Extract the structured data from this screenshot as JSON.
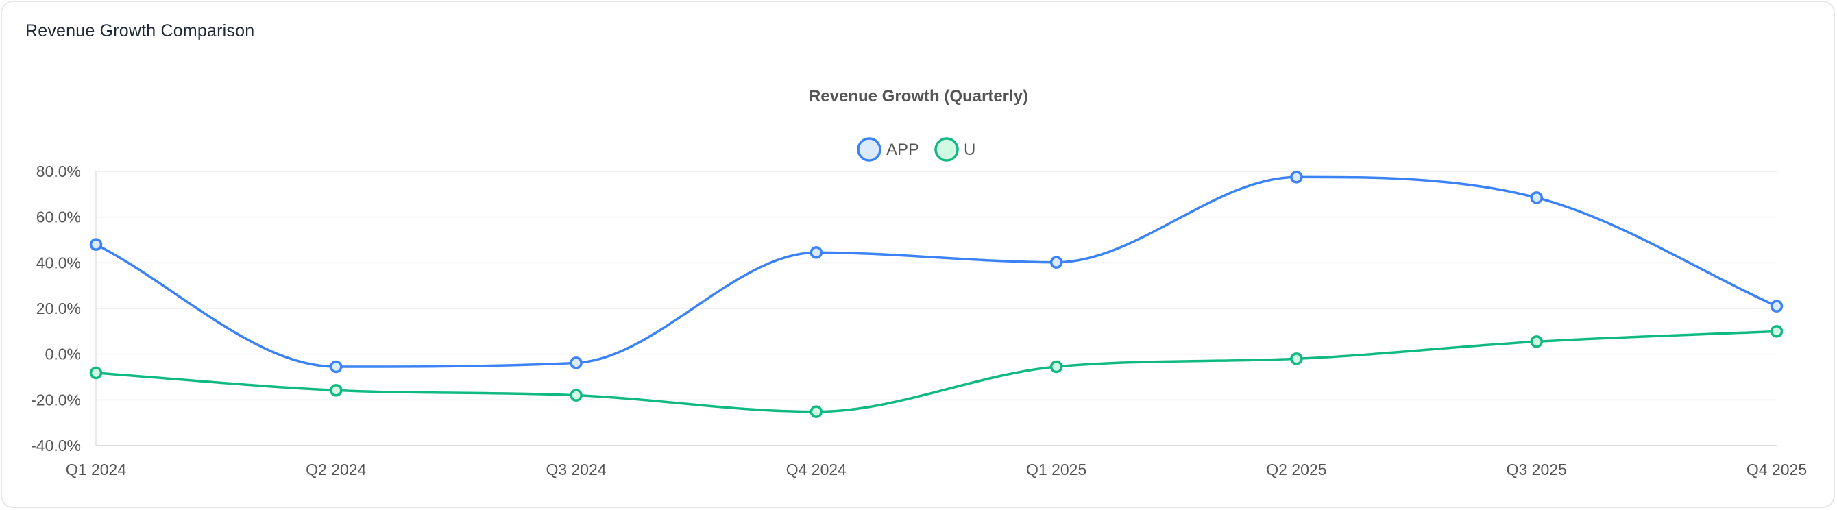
{
  "card": {
    "title": "Revenue Growth Comparison"
  },
  "chart_data": {
    "type": "line",
    "title": "Revenue Growth (Quarterly)",
    "categories": [
      "Q1 2024",
      "Q2 2024",
      "Q3 2024",
      "Q4 2024",
      "Q1 2025",
      "Q2 2025",
      "Q3 2025",
      "Q4 2025"
    ],
    "series": [
      {
        "name": "APP",
        "color": "#3b82f6",
        "fill": "#dbeafe",
        "values": [
          48.0,
          -5.5,
          -3.8,
          44.5,
          40.2,
          77.5,
          68.5,
          21.0
        ]
      },
      {
        "name": "U",
        "color": "#10b981",
        "fill": "#d1fae5",
        "values": [
          -8.2,
          -15.8,
          -18.0,
          -25.2,
          -5.5,
          -2.0,
          5.5,
          10.0
        ]
      }
    ],
    "ylim": [
      -40,
      80
    ],
    "yticks": [
      80,
      60,
      40,
      20,
      0,
      -20,
      -40
    ],
    "ytick_labels": [
      "80.0%",
      "60.0%",
      "40.0%",
      "20.0%",
      "0.0%",
      "-20.0%",
      "-40.0%"
    ],
    "xlabel": "",
    "ylabel": "",
    "legend": "top-center",
    "grid": true
  }
}
